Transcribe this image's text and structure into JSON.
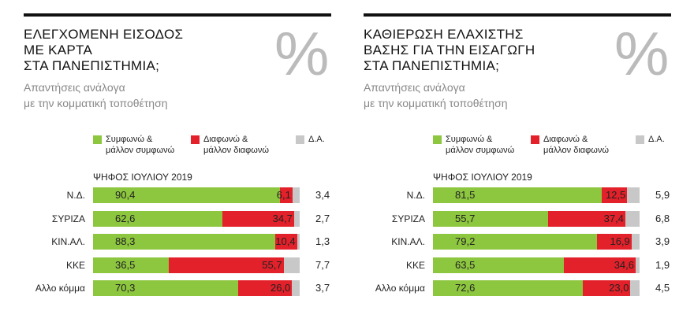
{
  "chart_data": [
    {
      "type": "bar",
      "stacked": true,
      "orientation": "horizontal",
      "title": "ΕΛΕΓΧΟΜΕΝΗ ΕΙΣΟΔΟΣ\nΜΕ ΚΑΡΤΑ\nΣΤΑ ΠΑΝΕΠΙΣΤΗΜΙΑ;",
      "subtitle": "Απαντήσεις ανάλογα\nμε την κομματική τοποθέτηση",
      "symbol": "%",
      "group_label": "ΨΗΦΟΣ ΙΟΥΛΙΟΥ 2019",
      "categories": [
        "Ν.Δ.",
        "ΣΥΡΙΖΑ",
        "ΚΙΝ.ΑΛ.",
        "ΚΚΕ",
        "Αλλο κόμμα"
      ],
      "xlim": [
        0,
        100
      ],
      "series": [
        {
          "name": "Συμφωνώ &\nμάλλον συμφωνώ",
          "color": "#8dc63f",
          "values": [
            90.4,
            62.6,
            88.3,
            36.5,
            70.3
          ],
          "value_labels": [
            "90,4",
            "62,6",
            "88,3",
            "36,5",
            "70,3"
          ]
        },
        {
          "name": "Διαφωνώ &\nμάλλον διαφωνώ",
          "color": "#e3212a",
          "values": [
            6.1,
            34.7,
            10.4,
            55.7,
            26.0
          ],
          "value_labels": [
            "6,1",
            "34,7",
            "10,4",
            "55,7",
            "26,0"
          ]
        },
        {
          "name": "Δ.Α.",
          "color": "#c8c8c8",
          "values": [
            3.4,
            2.7,
            1.3,
            7.7,
            3.7
          ],
          "value_labels": [
            "3,4",
            "2,7",
            "1,3",
            "7,7",
            "3,7"
          ]
        }
      ]
    },
    {
      "type": "bar",
      "stacked": true,
      "orientation": "horizontal",
      "title": "ΚΑΘΙΕΡΩΣΗ ΕΛΑΧΙΣΤΗΣ\nΒΑΣΗΣ ΓΙΑ ΤΗΝ ΕΙΣΑΓΩΓΗ\nΣΤΑ ΠΑΝΕΠΙΣΤΗΜΙΑ;",
      "subtitle": "Απαντήσεις ανάλογα\nμε την κομματική τοποθέτηση",
      "symbol": "%",
      "group_label": "ΨΗΦΟΣ ΙΟΥΛΙΟΥ 2019",
      "categories": [
        "Ν.Δ.",
        "ΣΥΡΙΖΑ",
        "ΚΙΝ.ΑΛ.",
        "ΚΚΕ",
        "Αλλο κόμμα"
      ],
      "xlim": [
        0,
        100
      ],
      "series": [
        {
          "name": "Συμφωνώ &\nμάλλον συμφωνώ",
          "color": "#8dc63f",
          "values": [
            81.5,
            55.7,
            79.2,
            63.5,
            72.6
          ],
          "value_labels": [
            "81,5",
            "55,7",
            "79,2",
            "63,5",
            "72,6"
          ]
        },
        {
          "name": "Διαφωνώ &\nμάλλον διαφωνώ",
          "color": "#e3212a",
          "values": [
            12.5,
            37.4,
            16.9,
            34.6,
            23.0
          ],
          "value_labels": [
            "12,5",
            "37,4",
            "16,9",
            "34,6",
            "23,0"
          ]
        },
        {
          "name": "Δ.Α.",
          "color": "#c8c8c8",
          "values": [
            5.9,
            6.8,
            3.9,
            1.9,
            4.5
          ],
          "value_labels": [
            "5,9",
            "6,8",
            "3,9",
            "1,9",
            "4,5"
          ]
        }
      ]
    }
  ]
}
